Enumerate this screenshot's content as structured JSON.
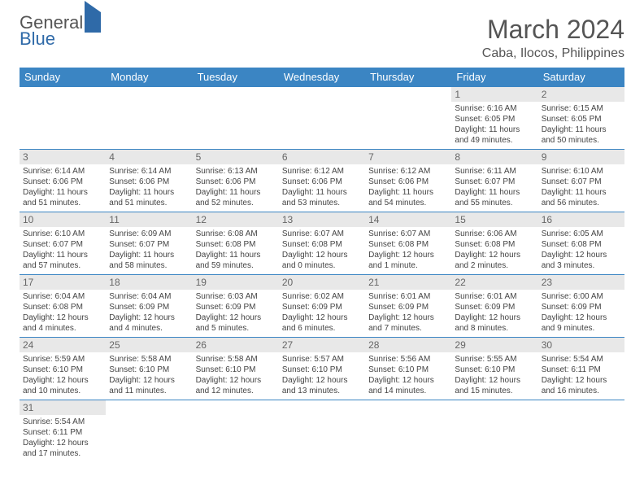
{
  "brand": {
    "part1": "General",
    "part2": "Blue"
  },
  "title": {
    "month": "March 2024",
    "location": "Caba, Ilocos, Philippines"
  },
  "colors": {
    "header_bg": "#3b85c3",
    "header_text": "#ffffff",
    "daynum_bg": "#e8e8e8",
    "daynum_text": "#666666",
    "body_text": "#444444",
    "rule": "#3b85c3"
  },
  "weekdays": [
    "Sunday",
    "Monday",
    "Tuesday",
    "Wednesday",
    "Thursday",
    "Friday",
    "Saturday"
  ],
  "weeks": [
    [
      {
        "n": "",
        "sr": "",
        "ss": "",
        "dl": ""
      },
      {
        "n": "",
        "sr": "",
        "ss": "",
        "dl": ""
      },
      {
        "n": "",
        "sr": "",
        "ss": "",
        "dl": ""
      },
      {
        "n": "",
        "sr": "",
        "ss": "",
        "dl": ""
      },
      {
        "n": "",
        "sr": "",
        "ss": "",
        "dl": ""
      },
      {
        "n": "1",
        "sr": "Sunrise: 6:16 AM",
        "ss": "Sunset: 6:05 PM",
        "dl": "Daylight: 11 hours and 49 minutes."
      },
      {
        "n": "2",
        "sr": "Sunrise: 6:15 AM",
        "ss": "Sunset: 6:05 PM",
        "dl": "Daylight: 11 hours and 50 minutes."
      }
    ],
    [
      {
        "n": "3",
        "sr": "Sunrise: 6:14 AM",
        "ss": "Sunset: 6:06 PM",
        "dl": "Daylight: 11 hours and 51 minutes."
      },
      {
        "n": "4",
        "sr": "Sunrise: 6:14 AM",
        "ss": "Sunset: 6:06 PM",
        "dl": "Daylight: 11 hours and 51 minutes."
      },
      {
        "n": "5",
        "sr": "Sunrise: 6:13 AM",
        "ss": "Sunset: 6:06 PM",
        "dl": "Daylight: 11 hours and 52 minutes."
      },
      {
        "n": "6",
        "sr": "Sunrise: 6:12 AM",
        "ss": "Sunset: 6:06 PM",
        "dl": "Daylight: 11 hours and 53 minutes."
      },
      {
        "n": "7",
        "sr": "Sunrise: 6:12 AM",
        "ss": "Sunset: 6:06 PM",
        "dl": "Daylight: 11 hours and 54 minutes."
      },
      {
        "n": "8",
        "sr": "Sunrise: 6:11 AM",
        "ss": "Sunset: 6:07 PM",
        "dl": "Daylight: 11 hours and 55 minutes."
      },
      {
        "n": "9",
        "sr": "Sunrise: 6:10 AM",
        "ss": "Sunset: 6:07 PM",
        "dl": "Daylight: 11 hours and 56 minutes."
      }
    ],
    [
      {
        "n": "10",
        "sr": "Sunrise: 6:10 AM",
        "ss": "Sunset: 6:07 PM",
        "dl": "Daylight: 11 hours and 57 minutes."
      },
      {
        "n": "11",
        "sr": "Sunrise: 6:09 AM",
        "ss": "Sunset: 6:07 PM",
        "dl": "Daylight: 11 hours and 58 minutes."
      },
      {
        "n": "12",
        "sr": "Sunrise: 6:08 AM",
        "ss": "Sunset: 6:08 PM",
        "dl": "Daylight: 11 hours and 59 minutes."
      },
      {
        "n": "13",
        "sr": "Sunrise: 6:07 AM",
        "ss": "Sunset: 6:08 PM",
        "dl": "Daylight: 12 hours and 0 minutes."
      },
      {
        "n": "14",
        "sr": "Sunrise: 6:07 AM",
        "ss": "Sunset: 6:08 PM",
        "dl": "Daylight: 12 hours and 1 minute."
      },
      {
        "n": "15",
        "sr": "Sunrise: 6:06 AM",
        "ss": "Sunset: 6:08 PM",
        "dl": "Daylight: 12 hours and 2 minutes."
      },
      {
        "n": "16",
        "sr": "Sunrise: 6:05 AM",
        "ss": "Sunset: 6:08 PM",
        "dl": "Daylight: 12 hours and 3 minutes."
      }
    ],
    [
      {
        "n": "17",
        "sr": "Sunrise: 6:04 AM",
        "ss": "Sunset: 6:08 PM",
        "dl": "Daylight: 12 hours and 4 minutes."
      },
      {
        "n": "18",
        "sr": "Sunrise: 6:04 AM",
        "ss": "Sunset: 6:09 PM",
        "dl": "Daylight: 12 hours and 4 minutes."
      },
      {
        "n": "19",
        "sr": "Sunrise: 6:03 AM",
        "ss": "Sunset: 6:09 PM",
        "dl": "Daylight: 12 hours and 5 minutes."
      },
      {
        "n": "20",
        "sr": "Sunrise: 6:02 AM",
        "ss": "Sunset: 6:09 PM",
        "dl": "Daylight: 12 hours and 6 minutes."
      },
      {
        "n": "21",
        "sr": "Sunrise: 6:01 AM",
        "ss": "Sunset: 6:09 PM",
        "dl": "Daylight: 12 hours and 7 minutes."
      },
      {
        "n": "22",
        "sr": "Sunrise: 6:01 AM",
        "ss": "Sunset: 6:09 PM",
        "dl": "Daylight: 12 hours and 8 minutes."
      },
      {
        "n": "23",
        "sr": "Sunrise: 6:00 AM",
        "ss": "Sunset: 6:09 PM",
        "dl": "Daylight: 12 hours and 9 minutes."
      }
    ],
    [
      {
        "n": "24",
        "sr": "Sunrise: 5:59 AM",
        "ss": "Sunset: 6:10 PM",
        "dl": "Daylight: 12 hours and 10 minutes."
      },
      {
        "n": "25",
        "sr": "Sunrise: 5:58 AM",
        "ss": "Sunset: 6:10 PM",
        "dl": "Daylight: 12 hours and 11 minutes."
      },
      {
        "n": "26",
        "sr": "Sunrise: 5:58 AM",
        "ss": "Sunset: 6:10 PM",
        "dl": "Daylight: 12 hours and 12 minutes."
      },
      {
        "n": "27",
        "sr": "Sunrise: 5:57 AM",
        "ss": "Sunset: 6:10 PM",
        "dl": "Daylight: 12 hours and 13 minutes."
      },
      {
        "n": "28",
        "sr": "Sunrise: 5:56 AM",
        "ss": "Sunset: 6:10 PM",
        "dl": "Daylight: 12 hours and 14 minutes."
      },
      {
        "n": "29",
        "sr": "Sunrise: 5:55 AM",
        "ss": "Sunset: 6:10 PM",
        "dl": "Daylight: 12 hours and 15 minutes."
      },
      {
        "n": "30",
        "sr": "Sunrise: 5:54 AM",
        "ss": "Sunset: 6:11 PM",
        "dl": "Daylight: 12 hours and 16 minutes."
      }
    ],
    [
      {
        "n": "31",
        "sr": "Sunrise: 5:54 AM",
        "ss": "Sunset: 6:11 PM",
        "dl": "Daylight: 12 hours and 17 minutes."
      },
      {
        "n": "",
        "sr": "",
        "ss": "",
        "dl": ""
      },
      {
        "n": "",
        "sr": "",
        "ss": "",
        "dl": ""
      },
      {
        "n": "",
        "sr": "",
        "ss": "",
        "dl": ""
      },
      {
        "n": "",
        "sr": "",
        "ss": "",
        "dl": ""
      },
      {
        "n": "",
        "sr": "",
        "ss": "",
        "dl": ""
      },
      {
        "n": "",
        "sr": "",
        "ss": "",
        "dl": ""
      }
    ]
  ]
}
